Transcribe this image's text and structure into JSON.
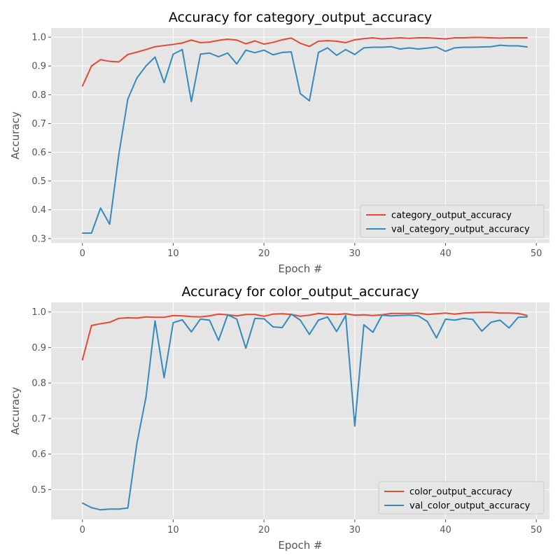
{
  "chart_data": [
    {
      "type": "line",
      "title": "Accuracy for category_output_accuracy",
      "xlabel": "Epoch #",
      "ylabel": "Accuracy",
      "xlim": [
        -3.45,
        51.45
      ],
      "ylim": [
        0.285,
        1.032
      ],
      "xticks": [
        0,
        10,
        20,
        30,
        40,
        50
      ],
      "yticks": [
        0.3,
        0.4,
        0.5,
        0.6,
        0.7,
        0.8,
        0.9,
        1.0
      ],
      "xtick_labels": [
        "0",
        "10",
        "20",
        "30",
        "40",
        "50"
      ],
      "ytick_labels": [
        "0.3",
        "0.4",
        "0.5",
        "0.6",
        "0.7",
        "0.8",
        "0.9",
        "1.0"
      ],
      "grid": true,
      "legend": "lower right",
      "series": [
        {
          "name": "category_output_accuracy",
          "color": "#E24A33",
          "values": [
            0.83,
            0.9,
            0.922,
            0.916,
            0.914,
            0.94,
            0.948,
            0.957,
            0.967,
            0.971,
            0.975,
            0.98,
            0.99,
            0.981,
            0.983,
            0.989,
            0.993,
            0.99,
            0.977,
            0.987,
            0.976,
            0.982,
            0.991,
            0.997,
            0.979,
            0.968,
            0.986,
            0.988,
            0.986,
            0.981,
            0.991,
            0.995,
            0.998,
            0.994,
            0.996,
            0.998,
            0.996,
            0.998,
            0.998,
            0.996,
            0.994,
            0.998,
            0.998,
            0.999,
            0.999,
            0.998,
            0.997,
            0.998,
            0.998,
            0.998
          ]
        },
        {
          "name": "val_category_output_accuracy",
          "color": "#348ABD",
          "values": [
            0.319,
            0.319,
            0.406,
            0.35,
            0.59,
            0.785,
            0.858,
            0.9,
            0.931,
            0.842,
            0.941,
            0.957,
            0.776,
            0.941,
            0.945,
            0.932,
            0.945,
            0.907,
            0.955,
            0.946,
            0.955,
            0.939,
            0.947,
            0.949,
            0.804,
            0.779,
            0.947,
            0.963,
            0.937,
            0.957,
            0.94,
            0.963,
            0.965,
            0.965,
            0.967,
            0.959,
            0.963,
            0.959,
            0.962,
            0.966,
            0.951,
            0.963,
            0.965,
            0.965,
            0.966,
            0.967,
            0.972,
            0.97,
            0.97,
            0.966
          ]
        }
      ]
    },
    {
      "type": "line",
      "title": "Accuracy for color_output_accuracy",
      "xlabel": "Epoch #",
      "ylabel": "Accuracy",
      "xlim": [
        -3.45,
        51.45
      ],
      "ylim": [
        0.416,
        1.027
      ],
      "xticks": [
        0,
        10,
        20,
        30,
        40,
        50
      ],
      "yticks": [
        0.5,
        0.6,
        0.7,
        0.8,
        0.9,
        1.0
      ],
      "xtick_labels": [
        "0",
        "10",
        "20",
        "30",
        "40",
        "50"
      ],
      "ytick_labels": [
        "0.5",
        "0.6",
        "0.7",
        "0.8",
        "0.9",
        "1.0"
      ],
      "grid": true,
      "legend": "lower right",
      "series": [
        {
          "name": "color_output_accuracy",
          "color": "#E24A33",
          "values": [
            0.865,
            0.962,
            0.967,
            0.971,
            0.982,
            0.984,
            0.983,
            0.986,
            0.985,
            0.985,
            0.99,
            0.989,
            0.987,
            0.986,
            0.989,
            0.994,
            0.992,
            0.989,
            0.993,
            0.993,
            0.988,
            0.994,
            0.995,
            0.993,
            0.988,
            0.991,
            0.996,
            0.994,
            0.993,
            0.995,
            0.991,
            0.992,
            0.99,
            0.992,
            0.996,
            0.996,
            0.996,
            0.997,
            0.993,
            0.995,
            0.997,
            0.994,
            0.997,
            0.998,
            0.999,
            0.999,
            0.997,
            0.997,
            0.996,
            0.99
          ]
        },
        {
          "name": "val_color_output_accuracy",
          "color": "#348ABD",
          "values": [
            0.462,
            0.449,
            0.443,
            0.445,
            0.445,
            0.448,
            0.63,
            0.76,
            0.975,
            0.815,
            0.97,
            0.978,
            0.944,
            0.98,
            0.977,
            0.92,
            0.992,
            0.98,
            0.898,
            0.982,
            0.981,
            0.958,
            0.956,
            0.994,
            0.977,
            0.937,
            0.977,
            0.986,
            0.945,
            0.99,
            0.679,
            0.964,
            0.943,
            0.991,
            0.989,
            0.99,
            0.991,
            0.989,
            0.973,
            0.927,
            0.98,
            0.977,
            0.982,
            0.979,
            0.946,
            0.971,
            0.977,
            0.955,
            0.985,
            0.986
          ]
        }
      ]
    }
  ]
}
